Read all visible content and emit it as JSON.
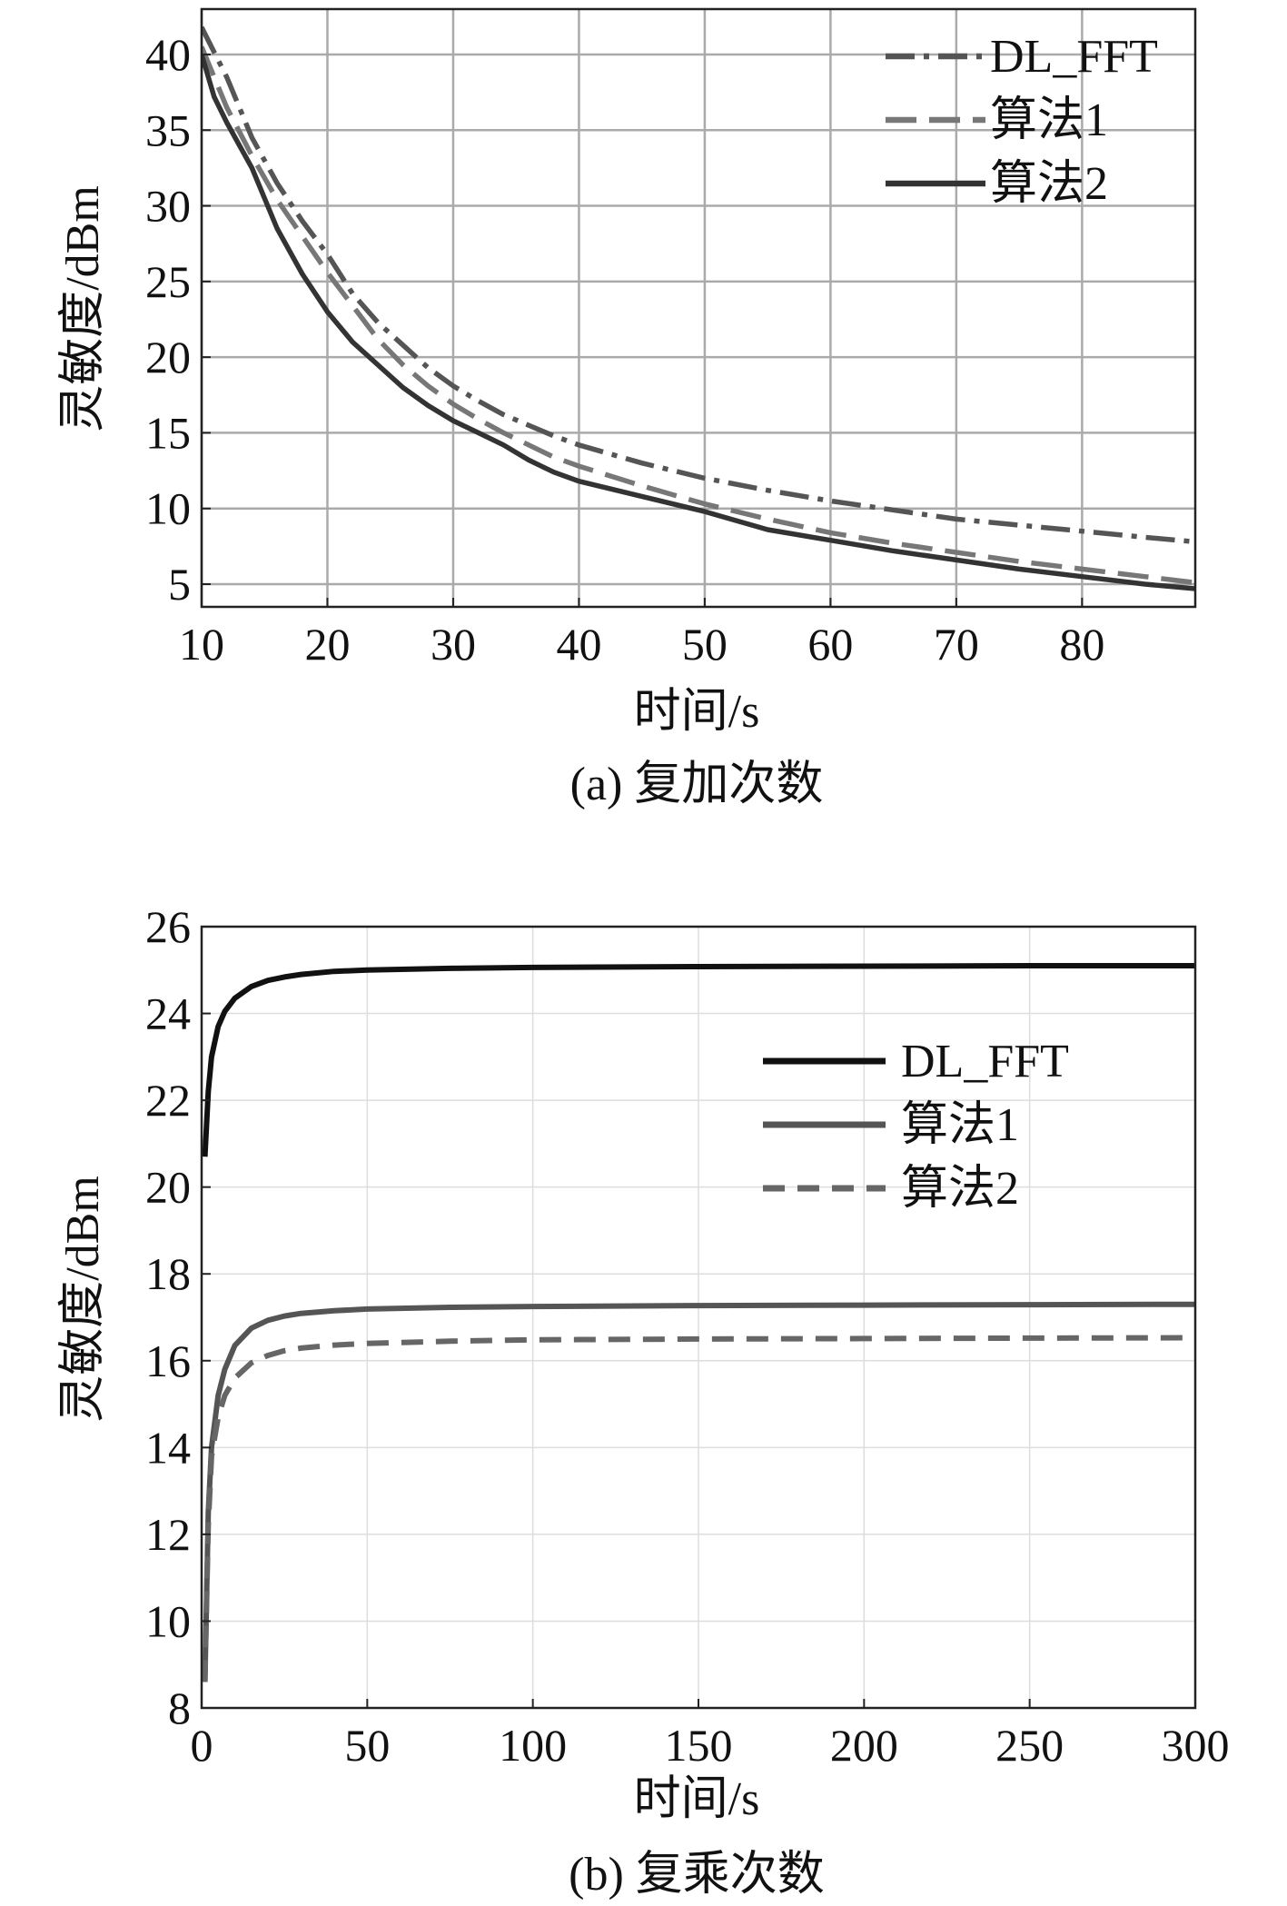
{
  "chart_data": [
    {
      "type": "line",
      "caption": "(a) 复加次数",
      "xlabel": "时间/s",
      "ylabel": "灵敏度/dBm",
      "xlim": [
        10,
        89
      ],
      "ylim": [
        3.5,
        43
      ],
      "xticks": [
        10,
        20,
        30,
        40,
        50,
        60,
        70,
        80
      ],
      "yticks": [
        5,
        10,
        15,
        20,
        25,
        30,
        35,
        40
      ],
      "grid": true,
      "legend_position": "top-right",
      "series": [
        {
          "name": "DL_FFT",
          "style": "dashdot",
          "color": "#555555",
          "x": [
            10,
            12,
            14,
            16,
            18,
            20,
            22,
            24,
            26,
            28,
            30,
            32,
            34,
            36,
            38,
            40,
            45,
            50,
            55,
            60,
            65,
            70,
            75,
            80,
            85,
            89
          ],
          "y": [
            41.8,
            38.5,
            34.5,
            31.5,
            29.0,
            26.8,
            24.2,
            22.3,
            20.8,
            19.3,
            18.1,
            17.1,
            16.2,
            15.5,
            14.8,
            14.2,
            13.0,
            12.0,
            11.2,
            10.5,
            9.9,
            9.3,
            8.9,
            8.5,
            8.1,
            7.8
          ]
        },
        {
          "name": "算法1",
          "style": "dashed",
          "color": "#777777",
          "x": [
            10,
            12,
            14,
            16,
            18,
            20,
            22,
            24,
            26,
            28,
            30,
            32,
            34,
            36,
            38,
            40,
            45,
            50,
            55,
            60,
            65,
            70,
            75,
            80,
            85,
            89
          ],
          "y": [
            40.5,
            36.5,
            33.3,
            30.4,
            28.0,
            25.6,
            23.4,
            21.2,
            19.5,
            18.1,
            16.9,
            15.9,
            15.0,
            14.2,
            13.4,
            12.8,
            11.5,
            10.3,
            9.3,
            8.4,
            7.7,
            7.1,
            6.5,
            6.0,
            5.5,
            5.1
          ]
        },
        {
          "name": "算法2",
          "style": "solid",
          "color": "#333333",
          "x": [
            10,
            11,
            12,
            14,
            16,
            18,
            20,
            22,
            24,
            26,
            28,
            30,
            32,
            34,
            36,
            38,
            40,
            45,
            50,
            55,
            60,
            65,
            70,
            75,
            80,
            85,
            89
          ],
          "y": [
            40.0,
            37.2,
            35.5,
            32.5,
            28.5,
            25.5,
            23.0,
            21.0,
            19.5,
            18.0,
            16.8,
            15.8,
            15.0,
            14.2,
            13.2,
            12.4,
            11.8,
            10.8,
            9.8,
            8.6,
            7.9,
            7.2,
            6.6,
            6.0,
            5.5,
            5.0,
            4.7
          ]
        }
      ]
    },
    {
      "type": "line",
      "caption": "(b) 复乘次数",
      "xlabel": "时间/s",
      "ylabel": "灵敏度/dBm",
      "xlim": [
        0,
        300
      ],
      "ylim": [
        8,
        26
      ],
      "xticks": [
        0,
        50,
        100,
        150,
        200,
        250,
        300
      ],
      "yticks": [
        8,
        10,
        12,
        14,
        16,
        18,
        20,
        22,
        24,
        26
      ],
      "grid": true,
      "legend_position": "upper-right",
      "series": [
        {
          "name": "DL_FFT",
          "style": "solid",
          "color": "#111111",
          "x": [
            1,
            2,
            3,
            5,
            7,
            10,
            15,
            20,
            25,
            30,
            40,
            50,
            75,
            100,
            150,
            200,
            250,
            300
          ],
          "y": [
            20.7,
            22.2,
            23.0,
            23.7,
            24.05,
            24.35,
            24.62,
            24.76,
            24.84,
            24.9,
            24.97,
            25.0,
            25.04,
            25.06,
            25.08,
            25.09,
            25.1,
            25.1
          ]
        },
        {
          "name": "算法1",
          "style": "solid",
          "color": "#555555",
          "x": [
            1,
            2,
            3,
            5,
            7,
            10,
            15,
            20,
            25,
            30,
            40,
            50,
            75,
            100,
            150,
            200,
            250,
            300
          ],
          "y": [
            8.6,
            12.5,
            14.0,
            15.2,
            15.8,
            16.35,
            16.75,
            16.93,
            17.03,
            17.09,
            17.15,
            17.19,
            17.23,
            17.25,
            17.27,
            17.28,
            17.29,
            17.3
          ]
        },
        {
          "name": "算法2",
          "style": "dashed",
          "color": "#666666",
          "x": [
            1,
            2,
            3,
            5,
            7,
            10,
            15,
            20,
            25,
            30,
            40,
            50,
            75,
            100,
            150,
            200,
            250,
            300
          ],
          "y": [
            8.6,
            12.2,
            13.8,
            14.7,
            15.2,
            15.6,
            15.95,
            16.12,
            16.23,
            16.29,
            16.36,
            16.4,
            16.45,
            16.48,
            16.5,
            16.51,
            16.52,
            16.53
          ]
        }
      ]
    }
  ]
}
